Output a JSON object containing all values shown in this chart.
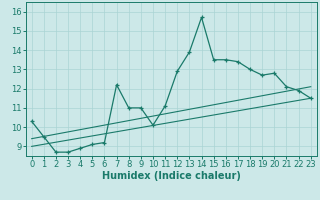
{
  "xlabel": "Humidex (Indice chaleur)",
  "bg_color": "#cce8e8",
  "line_color": "#1a7a6a",
  "xlim": [
    -0.5,
    23.5
  ],
  "ylim": [
    8.5,
    16.5
  ],
  "xticks": [
    0,
    1,
    2,
    3,
    4,
    5,
    6,
    7,
    8,
    9,
    10,
    11,
    12,
    13,
    14,
    15,
    16,
    17,
    18,
    19,
    20,
    21,
    22,
    23
  ],
  "yticks": [
    9,
    10,
    11,
    12,
    13,
    14,
    15,
    16
  ],
  "main_x": [
    0,
    1,
    2,
    3,
    4,
    5,
    6,
    7,
    8,
    9,
    10,
    11,
    12,
    13,
    14,
    15,
    16,
    17,
    18,
    19,
    20,
    21,
    22,
    23
  ],
  "main_y": [
    10.3,
    9.5,
    8.7,
    8.7,
    8.9,
    9.1,
    9.2,
    12.2,
    11.0,
    11.0,
    10.1,
    11.1,
    12.9,
    13.9,
    15.7,
    13.5,
    13.5,
    13.4,
    13.0,
    12.7,
    12.8,
    12.1,
    11.9,
    11.5
  ],
  "line1_x": [
    0,
    23
  ],
  "line1_y": [
    9.0,
    11.5
  ],
  "line2_x": [
    0,
    23
  ],
  "line2_y": [
    9.4,
    12.1
  ],
  "grid_color": "#aad4d4",
  "xlabel_fontsize": 7,
  "tick_fontsize": 6
}
